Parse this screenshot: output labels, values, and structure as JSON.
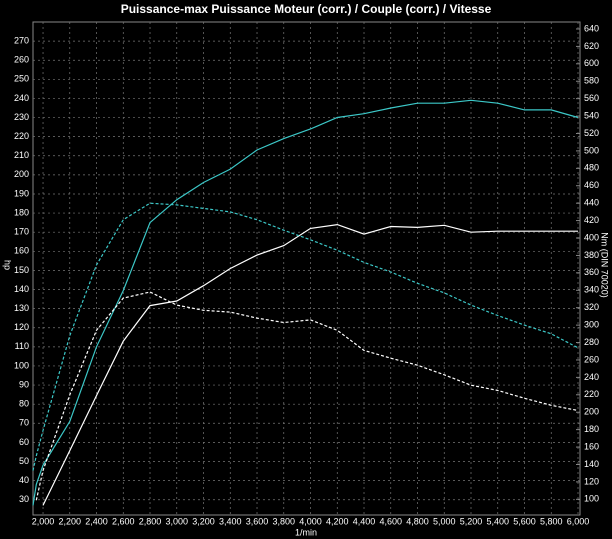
{
  "chart_data": {
    "type": "line",
    "title": "Puissance-max Puissance Moteur (corr.) / Couple (corr.) / Vitesse",
    "ylabel": "hp",
    "y2label": "Nm (DIN 70020)",
    "xlabel": "1/min",
    "x": [
      1925,
      1950,
      2000,
      2200,
      2400,
      2600,
      2800,
      3000,
      3200,
      3400,
      3600,
      3800,
      4000,
      4200,
      4400,
      4600,
      4800,
      5000,
      5200,
      5400,
      5600,
      5800,
      6000
    ],
    "xlim": [
      1925,
      6015
    ],
    "ylim": [
      22,
      280
    ],
    "y2lim": [
      82,
      648
    ],
    "grid": true,
    "xticks": [
      {
        "value": 2000,
        "label": "2,000"
      },
      {
        "value": 2200,
        "label": "2,200"
      },
      {
        "value": 2400,
        "label": "2,400"
      },
      {
        "value": 2600,
        "label": "2,600"
      },
      {
        "value": 2800,
        "label": "2,800"
      },
      {
        "value": 3000,
        "label": "3,000"
      },
      {
        "value": 3200,
        "label": "3,200"
      },
      {
        "value": 3400,
        "label": "3,400"
      },
      {
        "value": 3600,
        "label": "3,600"
      },
      {
        "value": 3800,
        "label": "3,800"
      },
      {
        "value": 4000,
        "label": "4,000"
      },
      {
        "value": 4200,
        "label": "4,200"
      },
      {
        "value": 4400,
        "label": "4,400"
      },
      {
        "value": 4600,
        "label": "4,600"
      },
      {
        "value": 4800,
        "label": "4,800"
      },
      {
        "value": 5000,
        "label": "5,000"
      },
      {
        "value": 5200,
        "label": "5,200"
      },
      {
        "value": 5400,
        "label": "5,400"
      },
      {
        "value": 5600,
        "label": "5,600"
      },
      {
        "value": 5800,
        "label": "5,800"
      },
      {
        "value": 6000,
        "label": "6,000"
      }
    ],
    "yticks": [
      30,
      40,
      50,
      60,
      70,
      80,
      90,
      100,
      110,
      120,
      130,
      140,
      150,
      160,
      170,
      180,
      190,
      200,
      210,
      220,
      230,
      240,
      250,
      260,
      270
    ],
    "y2ticks": [
      100,
      120,
      140,
      160,
      180,
      200,
      220,
      240,
      260,
      280,
      300,
      320,
      340,
      360,
      380,
      400,
      420,
      440,
      460,
      480,
      500,
      520,
      540,
      560,
      580,
      600,
      620,
      640
    ],
    "series": [
      {
        "color": "#3cc8c8",
        "dash": false,
        "values": [
          27,
          38,
          48,
          71,
          110,
          139.5,
          175,
          187,
          196,
          203,
          213,
          219,
          224,
          230,
          232,
          235,
          237.5,
          237.5,
          239,
          237.5,
          234,
          234,
          230
        ]
      },
      {
        "color": "#ffffff",
        "dash": false,
        "values": [
          null,
          null,
          27,
          55.7,
          84.5,
          113,
          131.6,
          134,
          142,
          151,
          158,
          163,
          172,
          174,
          169,
          173,
          172.5,
          173.6,
          170,
          170.5,
          170.5,
          170.5,
          170.5
        ]
      },
      {
        "color": "#3cc8c8",
        "dash": true,
        "axis": "y2",
        "values": [
          133,
          150,
          179,
          288,
          369,
          421,
          440,
          438,
          434,
          430,
          421,
          409,
          398,
          386,
          372,
          361,
          348,
          337,
          323,
          311,
          300,
          290,
          274
        ]
      },
      {
        "color": "#ffffff",
        "dash": true,
        "axis": "y2",
        "values": [
          null,
          99,
          133,
          220,
          294,
          331,
          338,
          323,
          317,
          315,
          308,
          303,
          306,
          294,
          271,
          262,
          254,
          243,
          231,
          225,
          216,
          208,
          202
        ]
      }
    ]
  }
}
